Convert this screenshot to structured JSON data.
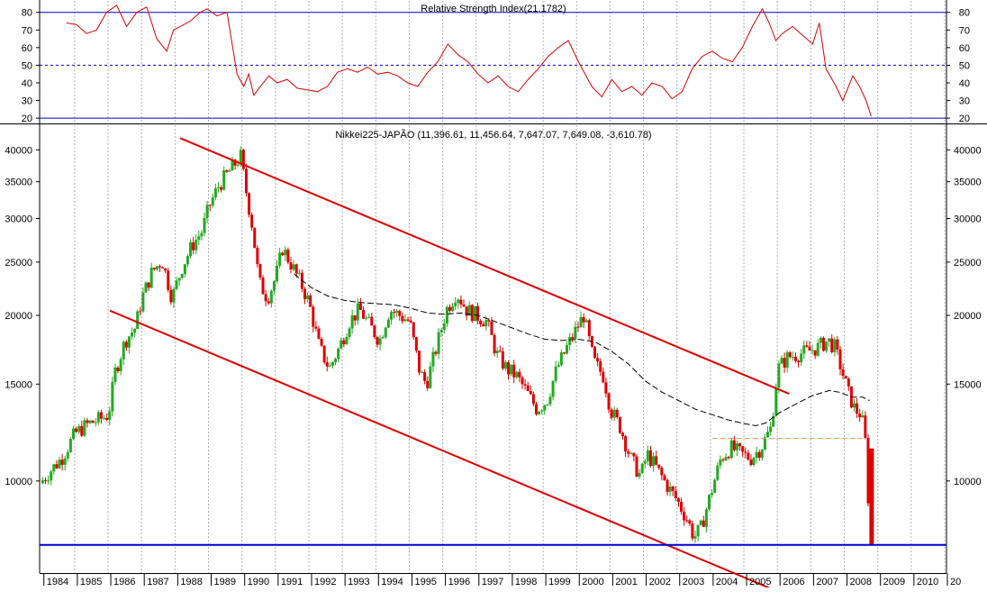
{
  "chart_data": [
    {
      "panel": "rsi",
      "type": "line",
      "title": "Relative Strength Index(21.1782)",
      "y_ticks": [
        20,
        30,
        40,
        50,
        60,
        70,
        80
      ],
      "ylim": [
        17,
        87
      ],
      "reference_lines": [
        {
          "value": 80,
          "style": "solid",
          "color": "#0000cc"
        },
        {
          "value": 50,
          "style": "dashed",
          "color": "#0000cc"
        },
        {
          "value": 20,
          "style": "solid",
          "color": "#0000cc"
        }
      ],
      "series": [
        {
          "name": "RSI",
          "color": "#dd0000",
          "x": [
            1984.7,
            1985.0,
            1985.3,
            1985.6,
            1985.9,
            1986.2,
            1986.5,
            1986.8,
            1987.1,
            1987.4,
            1987.7,
            1987.9,
            1988.1,
            1988.4,
            1988.7,
            1988.9,
            1989.2,
            1989.5,
            1989.8,
            1990.0,
            1990.15,
            1990.3,
            1990.5,
            1990.75,
            1991.0,
            1991.3,
            1991.6,
            1991.9,
            1992.2,
            1992.5,
            1992.8,
            1993.1,
            1993.4,
            1993.7,
            1994.0,
            1994.3,
            1994.6,
            1994.9,
            1995.2,
            1995.5,
            1995.8,
            1996.1,
            1996.4,
            1996.7,
            1997.0,
            1997.3,
            1997.6,
            1997.9,
            1998.2,
            1998.5,
            1998.8,
            1999.1,
            1999.4,
            1999.7,
            2000.0,
            2000.2,
            2000.4,
            2000.7,
            2001.0,
            2001.3,
            2001.6,
            2001.9,
            2002.2,
            2002.5,
            2002.8,
            2003.1,
            2003.4,
            2003.7,
            2004.0,
            2004.3,
            2004.6,
            2004.9,
            2005.2,
            2005.5,
            2005.7,
            2005.9,
            2006.1,
            2006.4,
            2006.7,
            2007.0,
            2007.2,
            2007.4,
            2007.7,
            2007.9,
            2008.2,
            2008.4,
            2008.6,
            2008.75
          ],
          "values": [
            74,
            73,
            68,
            70,
            80,
            84,
            72,
            80,
            83,
            65,
            58,
            70,
            72,
            75,
            80,
            82,
            78,
            80,
            45,
            38,
            45,
            33,
            38,
            44,
            40,
            42,
            37,
            36,
            35,
            38,
            46,
            48,
            46,
            49,
            45,
            46,
            44,
            40,
            38,
            46,
            52,
            62,
            56,
            52,
            45,
            40,
            44,
            38,
            35,
            42,
            48,
            55,
            60,
            64,
            52,
            45,
            38,
            32,
            42,
            35,
            38,
            33,
            40,
            38,
            31,
            35,
            48,
            55,
            58,
            54,
            52,
            60,
            72,
            82,
            74,
            64,
            68,
            72,
            67,
            62,
            74,
            48,
            38,
            30,
            44,
            38,
            30,
            21
          ]
        }
      ]
    },
    {
      "panel": "price",
      "type": "candlestick",
      "title": "Nikkei225-JAPÃO (11,396.61, 11,456.64, 7,647.07, 7,649.08, -3,610.78)",
      "y_scale": "log",
      "y_ticks": [
        10000,
        15000,
        20000,
        25000,
        30000,
        35000,
        40000
      ],
      "ylim": [
        6800,
        44500
      ],
      "xlabel": "",
      "x_ticks": [
        "1984",
        "1985",
        "1986",
        "1987",
        "1988",
        "1989",
        "1990",
        "1991",
        "1992",
        "1993",
        "1994",
        "1995",
        "1996",
        "1997",
        "1998",
        "1999",
        "2000",
        "2001",
        "2002",
        "2003",
        "2004",
        "2005",
        "2006",
        "2007",
        "2008",
        "2009",
        "2010",
        "20"
      ],
      "xlim": [
        1983.9,
        2011.0
      ],
      "up_color": "#22aa22",
      "down_color": "#dd0000",
      "close_path": {
        "x": [
          1983.95,
          1984.3,
          1984.6,
          1985.0,
          1985.4,
          1985.8,
          1986.0,
          1986.2,
          1986.5,
          1986.8,
          1987.0,
          1987.3,
          1987.6,
          1987.9,
          1988.2,
          1988.5,
          1988.8,
          1989.0,
          1989.3,
          1989.6,
          1989.95,
          1990.1,
          1990.3,
          1990.5,
          1990.75,
          1991.0,
          1991.2,
          1991.5,
          1991.8,
          1992.0,
          1992.3,
          1992.6,
          1992.9,
          1993.2,
          1993.5,
          1993.8,
          1994.1,
          1994.4,
          1994.7,
          1995.0,
          1995.3,
          1995.5,
          1995.8,
          1996.1,
          1996.4,
          1996.7,
          1997.0,
          1997.3,
          1997.6,
          1997.9,
          1998.2,
          1998.5,
          1998.8,
          1999.1,
          1999.4,
          1999.7,
          2000.0,
          2000.2,
          2000.5,
          2000.8,
          2001.0,
          2001.3,
          2001.6,
          2001.9,
          2002.1,
          2002.4,
          2002.7,
          2003.0,
          2003.3,
          2003.5,
          2003.7,
          2004.0,
          2004.3,
          2004.6,
          2004.9,
          2005.2,
          2005.5,
          2005.8,
          2006.0,
          2006.3,
          2006.6,
          2006.9,
          2007.2,
          2007.5,
          2007.7,
          2007.9,
          2008.1,
          2008.3,
          2008.5,
          2008.65,
          2008.75
        ],
        "values": [
          9900,
          10500,
          11000,
          12200,
          12700,
          13000,
          13200,
          15800,
          18000,
          19000,
          21500,
          24000,
          25200,
          21500,
          24500,
          26800,
          28500,
          31500,
          34500,
          36500,
          38900,
          34000,
          29000,
          23000,
          21500,
          23500,
          26500,
          24500,
          22500,
          21000,
          17500,
          16000,
          17500,
          19500,
          20500,
          19200,
          18000,
          20500,
          20000,
          19500,
          15800,
          15000,
          17500,
          20500,
          22000,
          20500,
          20000,
          19500,
          17000,
          16000,
          15500,
          14500,
          13500,
          14000,
          16000,
          17500,
          19000,
          20000,
          16500,
          15500,
          13500,
          12500,
          11000,
          10200,
          11200,
          10500,
          9800,
          9200,
          8500,
          7900,
          8200,
          9500,
          11000,
          11500,
          11200,
          11000,
          11500,
          12500,
          16000,
          16800,
          17000,
          17200,
          17500,
          18000,
          17500,
          16000,
          14500,
          13500,
          13200,
          11400,
          7650
        ]
      },
      "moving_average": {
        "name": "MA",
        "style": "dashed",
        "color": "#000000",
        "x": [
          1991.5,
          1992.0,
          1992.5,
          1993.0,
          1993.5,
          1994.0,
          1994.5,
          1995.0,
          1995.5,
          1996.0,
          1996.5,
          1997.0,
          1997.5,
          1998.0,
          1998.5,
          1999.0,
          1999.5,
          2000.0,
          2000.5,
          2001.0,
          2001.5,
          2002.0,
          2002.5,
          2003.0,
          2003.5,
          2004.0,
          2004.5,
          2005.0,
          2005.3,
          2005.6,
          2006.0,
          2006.5,
          2007.0,
          2007.5,
          2007.8,
          2008.2,
          2008.5,
          2008.7
        ],
        "values": [
          23800,
          22500,
          21700,
          21300,
          21100,
          21000,
          20900,
          20600,
          20200,
          20100,
          20200,
          20000,
          19500,
          19000,
          18500,
          18100,
          18000,
          18100,
          17900,
          17200,
          16300,
          15200,
          14500,
          14000,
          13500,
          13200,
          12900,
          12700,
          12600,
          12750,
          13300,
          13800,
          14300,
          14600,
          14500,
          14200,
          14200,
          14000
        ]
      },
      "annotations": [
        {
          "type": "line",
          "label": "upper trend line",
          "color": "#dd0000",
          "from": [
            1988.1,
            42000
          ],
          "to": [
            2006.3,
            14400
          ]
        },
        {
          "type": "line",
          "label": "lower trend line",
          "color": "#dd0000",
          "from": [
            1986.0,
            20400
          ],
          "to": [
            2006.35,
            6150
          ]
        },
        {
          "type": "hline",
          "label": "support level",
          "color": "#0000cc",
          "value": 7650
        },
        {
          "type": "hline-dashed",
          "label": "resistance level",
          "color": "#e8a060",
          "from_x": 2004.0,
          "to_x": 2008.5,
          "value": 11950
        }
      ]
    }
  ]
}
